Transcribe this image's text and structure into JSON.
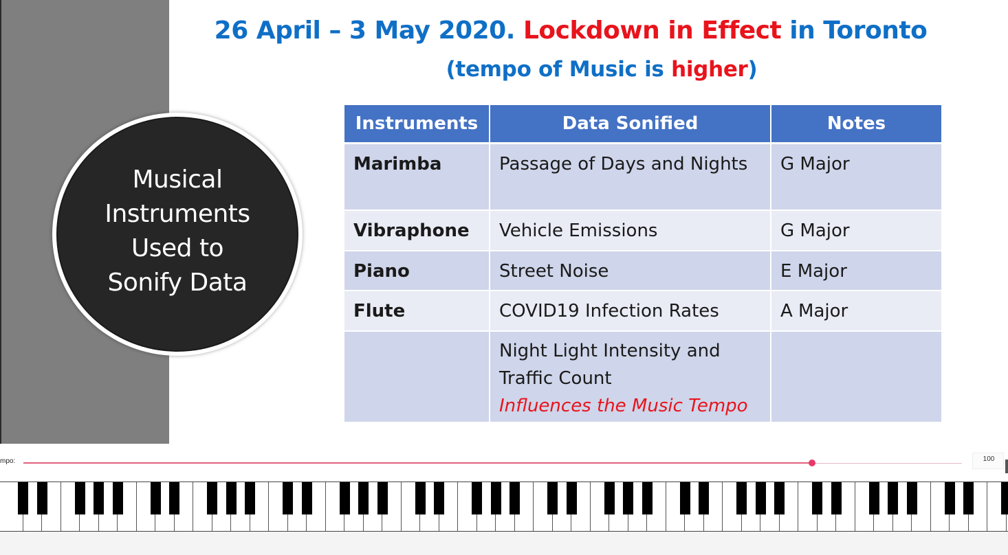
{
  "slide": {
    "title": {
      "part1": "26 April – 3 May 2020. ",
      "highlight": "Lockdown in Effect",
      "part2": " in Toronto"
    },
    "subtitle": {
      "part1": "(tempo of Music is ",
      "highlight": "higher",
      "part2": ")"
    },
    "circle_text": "Musical\nInstruments\nUsed to\nSonify Data",
    "table": {
      "headers": [
        "Instruments",
        "Data Sonified",
        "Notes"
      ],
      "rows": [
        {
          "instrument": "Marimba",
          "data": "Passage of Days and Nights",
          "note": "G Major"
        },
        {
          "instrument": "Vibraphone",
          "data": "Vehicle Emissions",
          "note": "G Major"
        },
        {
          "instrument": "Piano",
          "data": "Street Noise",
          "note": "E Major"
        },
        {
          "instrument": "Flute",
          "data": "COVID19 Infection Rates",
          "note": "A Major"
        },
        {
          "instrument": "",
          "data_line1": "Night Light Intensity and",
          "data_line2": "Traffic Count",
          "data_line3": "Influences the Music Tempo",
          "note": ""
        }
      ]
    }
  },
  "controls": {
    "tempo_label": "mpo:",
    "tempo_value": "100",
    "tempo_fraction": 0.84
  },
  "keyboard": {
    "white_key_count": 54,
    "active_key": "black key (pressed)",
    "active_color": "#e8421e"
  },
  "colors": {
    "title_blue": "#0f6fc6",
    "accent_red": "#e8141c",
    "table_header": "#4472c4"
  }
}
